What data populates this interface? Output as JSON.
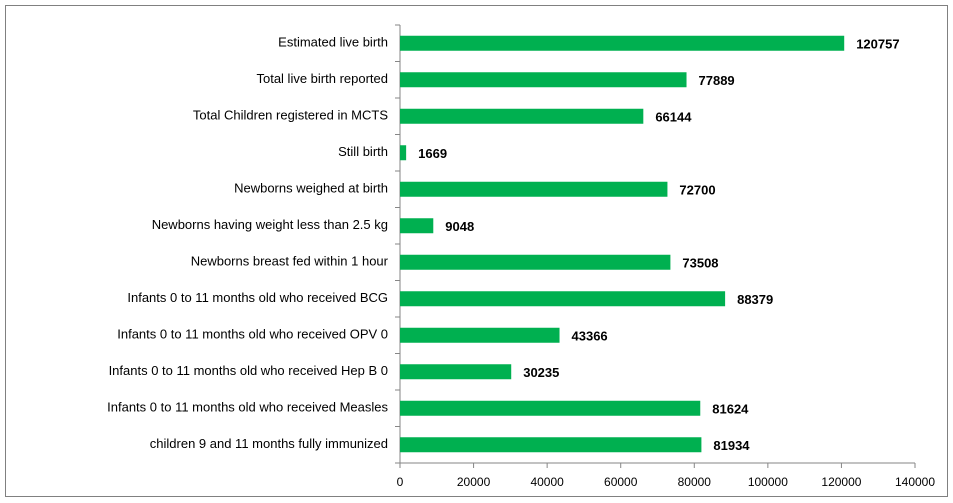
{
  "chart_data": {
    "type": "bar",
    "categories": [
      "Estimated live birth",
      "Total live birth reported",
      "Total Children registered in MCTS",
      "Still birth",
      "Newborns weighed at birth",
      "Newborns having weight less than 2.5 kg",
      "Newborns breast fed within 1 hour",
      "Infants 0 to 11 months old who received BCG",
      "Infants 0 to 11 months old who received OPV 0",
      "Infants 0 to 11 months old who received Hep B 0",
      "Infants 0 to 11 months old who received Measles",
      "children 9 and 11 months fully immunized"
    ],
    "values": [
      120757,
      77889,
      66144,
      1669,
      72700,
      9048,
      73508,
      88379,
      43366,
      30235,
      81624,
      81934
    ],
    "color": "#00b050",
    "xlim": [
      0,
      140000
    ],
    "xticks": [
      0,
      20000,
      40000,
      60000,
      80000,
      100000,
      120000,
      140000
    ]
  }
}
